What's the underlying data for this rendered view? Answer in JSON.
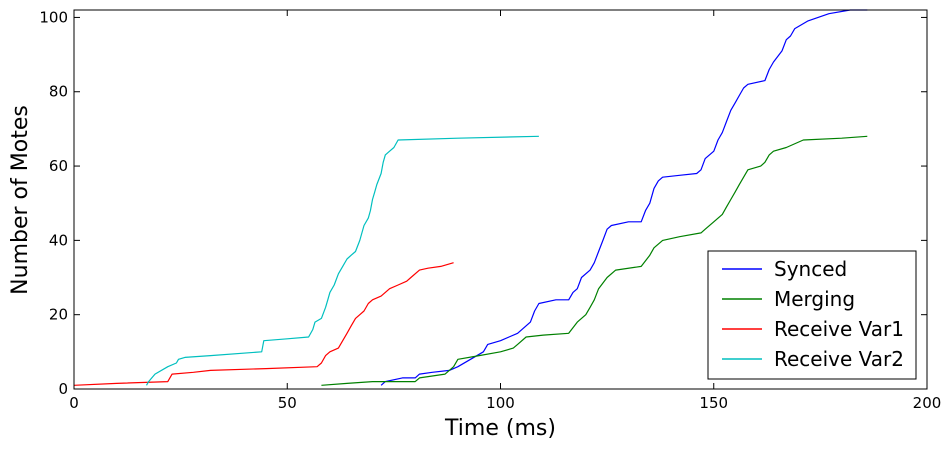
{
  "chart_data": {
    "type": "line",
    "title": "",
    "xlabel": "Time (ms)",
    "ylabel": "Number of Motes",
    "xlim": [
      0,
      200
    ],
    "ylim": [
      0,
      102
    ],
    "xticks": [
      "0",
      "50",
      "100",
      "150",
      "200"
    ],
    "yticks": [
      "0",
      "20",
      "40",
      "60",
      "80",
      "100"
    ],
    "grid": false,
    "legend_position": "bottom-right",
    "series": [
      {
        "name": "Synced",
        "color": "#0000ff",
        "points": [
          [
            72,
            1
          ],
          [
            73,
            2
          ],
          [
            77,
            3
          ],
          [
            80,
            3
          ],
          [
            81,
            4
          ],
          [
            84,
            4.5
          ],
          [
            88,
            5
          ],
          [
            90,
            6
          ],
          [
            96,
            10
          ],
          [
            97,
            12
          ],
          [
            100,
            13
          ],
          [
            102,
            14
          ],
          [
            104,
            15
          ],
          [
            107,
            18
          ],
          [
            108,
            21
          ],
          [
            109,
            23
          ],
          [
            113,
            24
          ],
          [
            116,
            24
          ],
          [
            117,
            26
          ],
          [
            118,
            27
          ],
          [
            119,
            30
          ],
          [
            121,
            32
          ],
          [
            122,
            34
          ],
          [
            123,
            37
          ],
          [
            124,
            40
          ],
          [
            125,
            43
          ],
          [
            126,
            44
          ],
          [
            130,
            45
          ],
          [
            133,
            45
          ],
          [
            134,
            48
          ],
          [
            135,
            50
          ],
          [
            136,
            54
          ],
          [
            137,
            56
          ],
          [
            138,
            57
          ],
          [
            142,
            57.5
          ],
          [
            146,
            58
          ],
          [
            147,
            59
          ],
          [
            148,
            62
          ],
          [
            150,
            64
          ],
          [
            151,
            67
          ],
          [
            152,
            69
          ],
          [
            153,
            72
          ],
          [
            154,
            75
          ],
          [
            155,
            77
          ],
          [
            156,
            79
          ],
          [
            157,
            81
          ],
          [
            158,
            82
          ],
          [
            162,
            83
          ],
          [
            163,
            86
          ],
          [
            164,
            88
          ],
          [
            166,
            91
          ],
          [
            167,
            94
          ],
          [
            168,
            95
          ],
          [
            169,
            97
          ],
          [
            172,
            99
          ],
          [
            177,
            101
          ],
          [
            182,
            102
          ],
          [
            186,
            102
          ]
        ]
      },
      {
        "name": "Merging",
        "color": "#008000",
        "points": [
          [
            58,
            1
          ],
          [
            64,
            1.5
          ],
          [
            70,
            2
          ],
          [
            80,
            2
          ],
          [
            81,
            3
          ],
          [
            84,
            3.5
          ],
          [
            87,
            4
          ],
          [
            89,
            6
          ],
          [
            90,
            8
          ],
          [
            95,
            9
          ],
          [
            100,
            10
          ],
          [
            103,
            11
          ],
          [
            104,
            12
          ],
          [
            106,
            14
          ],
          [
            110,
            14.5
          ],
          [
            116,
            15
          ],
          [
            118,
            18
          ],
          [
            120,
            20
          ],
          [
            121,
            22
          ],
          [
            122,
            24
          ],
          [
            123,
            27
          ],
          [
            125,
            30
          ],
          [
            127,
            32
          ],
          [
            133,
            33
          ],
          [
            135,
            36
          ],
          [
            136,
            38
          ],
          [
            138,
            40
          ],
          [
            142,
            41
          ],
          [
            147,
            42
          ],
          [
            148,
            43
          ],
          [
            150,
            45
          ],
          [
            152,
            47
          ],
          [
            153,
            49
          ],
          [
            154,
            51
          ],
          [
            155,
            53
          ],
          [
            156,
            55
          ],
          [
            157,
            57
          ],
          [
            158,
            59
          ],
          [
            161,
            60
          ],
          [
            162,
            61
          ],
          [
            163,
            63
          ],
          [
            164,
            64
          ],
          [
            167,
            65
          ],
          [
            171,
            67
          ],
          [
            180,
            67.5
          ],
          [
            186,
            68
          ]
        ]
      },
      {
        "name": "Receive Var1",
        "color": "#ff0000",
        "points": [
          [
            0,
            1
          ],
          [
            10,
            1.5
          ],
          [
            22,
            2
          ],
          [
            23,
            4
          ],
          [
            28,
            4.5
          ],
          [
            32,
            5
          ],
          [
            45,
            5.5
          ],
          [
            57,
            6
          ],
          [
            58,
            7
          ],
          [
            59,
            9
          ],
          [
            60,
            10
          ],
          [
            62,
            11
          ],
          [
            63,
            13
          ],
          [
            64,
            15
          ],
          [
            65,
            17
          ],
          [
            66,
            19
          ],
          [
            67,
            20
          ],
          [
            68,
            21
          ],
          [
            69,
            23
          ],
          [
            70,
            24
          ],
          [
            72,
            25
          ],
          [
            73,
            26
          ],
          [
            74,
            27
          ],
          [
            76,
            28
          ],
          [
            78,
            29
          ],
          [
            79,
            30
          ],
          [
            81,
            32
          ],
          [
            83,
            32.5
          ],
          [
            86,
            33
          ],
          [
            89,
            34
          ]
        ]
      },
      {
        "name": "Receive Var2",
        "color": "#00bfbf",
        "points": [
          [
            17,
            1
          ],
          [
            17.5,
            2
          ],
          [
            19,
            4
          ],
          [
            22,
            6
          ],
          [
            24,
            7
          ],
          [
            24.5,
            8
          ],
          [
            26,
            8.5
          ],
          [
            32,
            9
          ],
          [
            44,
            10
          ],
          [
            44.5,
            13
          ],
          [
            50,
            13.5
          ],
          [
            55,
            14
          ],
          [
            56,
            16
          ],
          [
            56.5,
            18
          ],
          [
            58,
            19
          ],
          [
            59,
            22
          ],
          [
            59.5,
            24
          ],
          [
            60,
            26
          ],
          [
            61,
            28
          ],
          [
            62,
            31
          ],
          [
            63,
            33
          ],
          [
            64,
            35
          ],
          [
            65,
            36
          ],
          [
            66,
            37
          ],
          [
            67,
            40
          ],
          [
            67.5,
            42
          ],
          [
            68,
            44
          ],
          [
            69,
            46
          ],
          [
            69.5,
            48
          ],
          [
            70,
            51
          ],
          [
            70.5,
            53
          ],
          [
            71,
            55
          ],
          [
            72,
            58
          ],
          [
            72.5,
            61
          ],
          [
            73,
            63
          ],
          [
            74,
            64
          ],
          [
            75,
            65
          ],
          [
            76,
            67
          ],
          [
            90,
            67.5
          ],
          [
            109,
            68
          ]
        ]
      }
    ]
  }
}
